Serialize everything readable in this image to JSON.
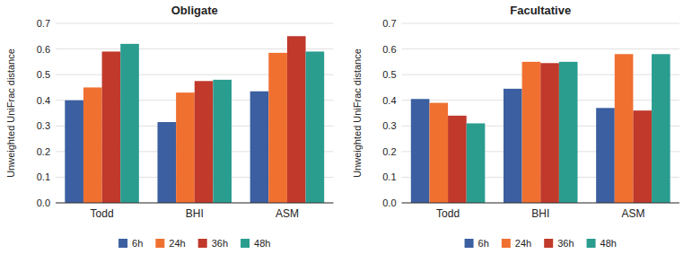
{
  "chart_data": [
    {
      "type": "bar",
      "title": "Obligate",
      "ylabel": "Unweighted UniFrac distance",
      "categories": [
        "Todd",
        "BHI",
        "ASM"
      ],
      "series": [
        {
          "name": "6h",
          "color": "#3b5fa0",
          "values": [
            0.4,
            0.315,
            0.435
          ]
        },
        {
          "name": "24h",
          "color": "#f07030",
          "values": [
            0.45,
            0.43,
            0.585
          ]
        },
        {
          "name": "36h",
          "color": "#c0392b",
          "values": [
            0.59,
            0.475,
            0.65
          ]
        },
        {
          "name": "48h",
          "color": "#2a9d8f",
          "values": [
            0.62,
            0.48,
            0.59
          ]
        }
      ],
      "ylim": [
        0,
        0.7
      ],
      "yticks": [
        {
          "value": 0,
          "label": "0.0"
        },
        0.1,
        0.2,
        0.3,
        0.4,
        0.5,
        0.6,
        0.7
      ],
      "grid": true,
      "legend": "bottom"
    },
    {
      "type": "bar",
      "title": "Facultative",
      "ylabel": "Unweighted UniFrac distance",
      "categories": [
        "Todd",
        "BHI",
        "ASM"
      ],
      "series": [
        {
          "name": "6h",
          "color": "#3b5fa0",
          "values": [
            0.405,
            0.445,
            0.37
          ]
        },
        {
          "name": "24h",
          "color": "#f07030",
          "values": [
            0.39,
            0.55,
            0.58
          ]
        },
        {
          "name": "36h",
          "color": "#c0392b",
          "values": [
            0.34,
            0.545,
            0.36
          ]
        },
        {
          "name": "48h",
          "color": "#2a9d8f",
          "values": [
            0.31,
            0.55,
            0.58
          ]
        }
      ],
      "ylim": [
        0,
        0.7
      ],
      "yticks": [
        {
          "value": 0,
          "label": "0.0"
        },
        0.1,
        0.2,
        0.3,
        0.4,
        0.5,
        0.6,
        0.7
      ],
      "grid": true,
      "legend": "bottom"
    }
  ]
}
